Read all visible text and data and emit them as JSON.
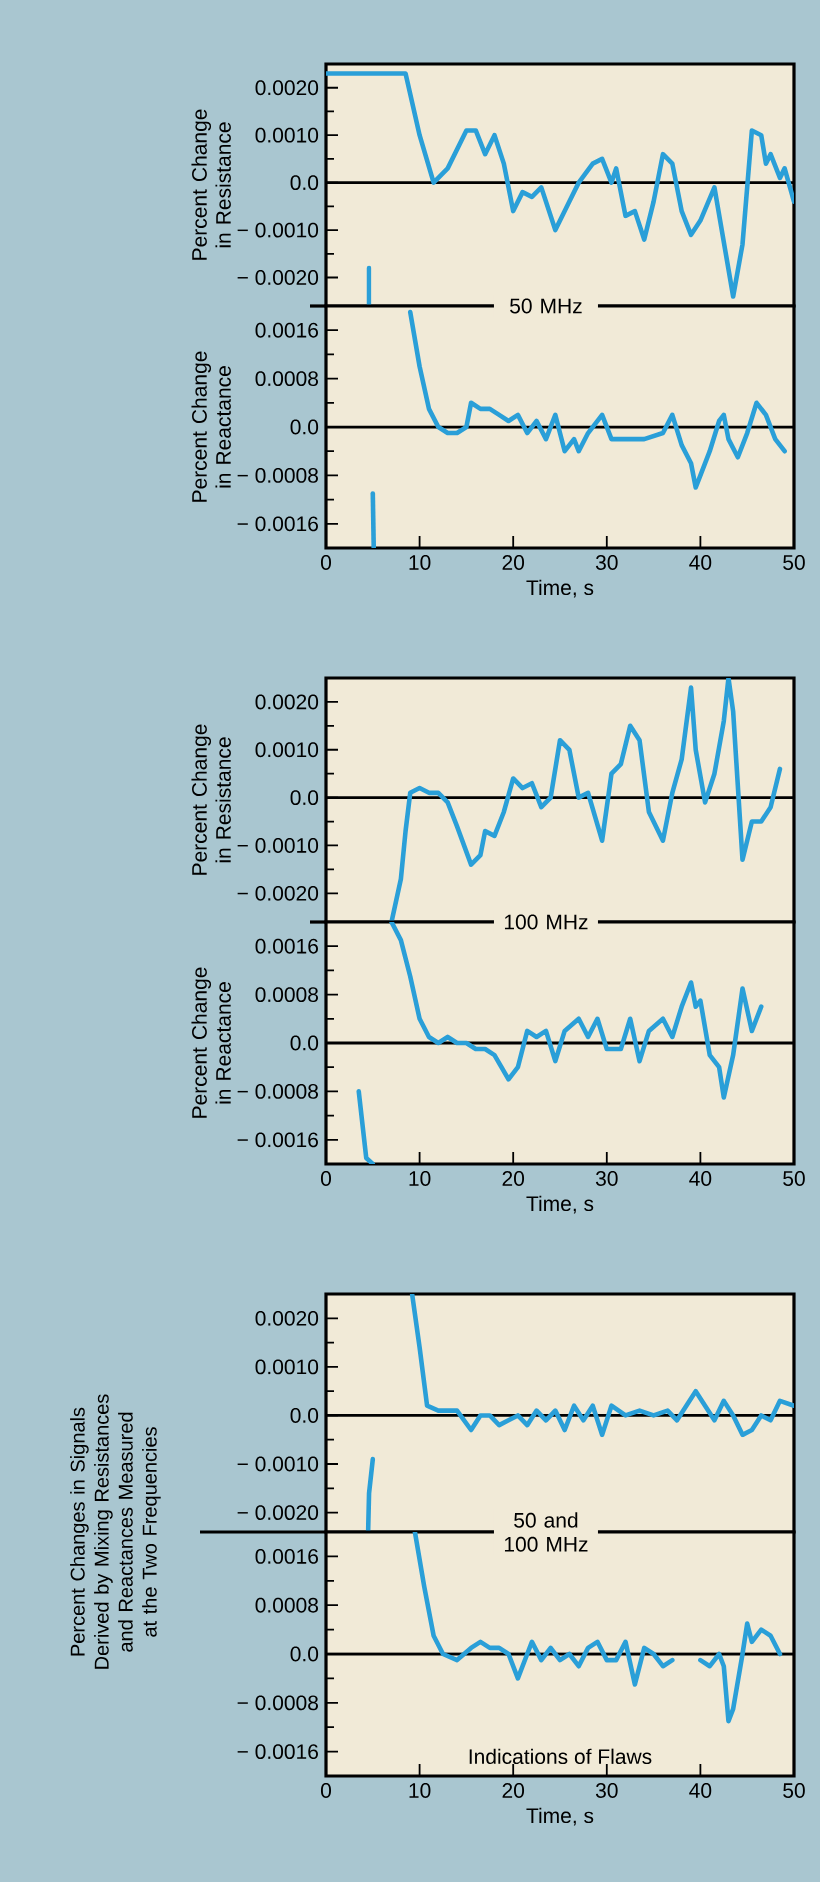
{
  "chart_data": [
    {
      "type": "line",
      "ylabel": "Percent Change in Resistance",
      "xlim": [
        0,
        50
      ],
      "xticks": [
        0,
        10,
        20,
        30,
        40,
        50
      ],
      "ylim": [
        -0.0026,
        0.0025
      ],
      "yticks": [
        {
          "value": 0.002,
          "label": "0.0020"
        },
        {
          "value": 0.001,
          "label": "0.0010"
        },
        {
          "value": 0,
          "label": "0.0"
        },
        {
          "value": -0.001,
          "label": "− 0.0010"
        },
        {
          "value": -0.002,
          "label": "− 0.0020"
        }
      ],
      "tick_labels": "y",
      "ref_lines": [
        {
          "axis": "y",
          "value": 0
        }
      ],
      "annotations": [
        "50 MHz"
      ],
      "series": [
        {
          "color": "#2a9fd8",
          "x": [
            0,
            8.5,
            10,
            11.5,
            13,
            15,
            16,
            17,
            18,
            19,
            20,
            21,
            22,
            23,
            24.5,
            26,
            27,
            28.5,
            29.5,
            30.5,
            31,
            32,
            33,
            34,
            35,
            36,
            37,
            38,
            39,
            40,
            41.5,
            43.5,
            44.5,
            45.5,
            46.5,
            47,
            47.5,
            48.5,
            49,
            50
          ],
          "values": [
            0.0023,
            0.0023,
            0.001,
            0.0,
            0.0003,
            0.0011,
            0.0011,
            0.0006,
            0.001,
            0.0004,
            -0.0006,
            -0.0002,
            -0.0003,
            -0.0001,
            -0.001,
            -0.0004,
            0.0,
            0.0004,
            0.0005,
            0.0,
            0.0003,
            -0.0007,
            -0.0006,
            -0.0012,
            -0.0004,
            0.0006,
            0.0004,
            -0.0006,
            -0.0011,
            -0.0008,
            -0.0001,
            -0.0024,
            -0.0013,
            0.0011,
            0.001,
            0.0004,
            0.0006,
            0.0001,
            0.0003,
            -0.0004
          ]
        },
        {
          "color": "#2a9fd8",
          "x": [
            4.6,
            4.6
          ],
          "values": [
            -0.0018,
            -0.0026
          ]
        }
      ]
    },
    {
      "type": "line",
      "ylabel": "Percent Change in Reactance",
      "xlabel": "Time, s",
      "xlim": [
        0,
        50
      ],
      "xticks": [
        0,
        10,
        20,
        30,
        40,
        50
      ],
      "ylim": [
        -0.002,
        0.002
      ],
      "yticks": [
        {
          "value": 0.0016,
          "label": "0.0016"
        },
        {
          "value": 0.0008,
          "label": "0.0008"
        },
        {
          "value": 0,
          "label": "0.0"
        },
        {
          "value": -0.0008,
          "label": "− 0.0008"
        },
        {
          "value": -0.0016,
          "label": "− 0.0016"
        }
      ],
      "ref_lines": [
        {
          "axis": "y",
          "value": 0
        }
      ],
      "series": [
        {
          "color": "#2a9fd8",
          "x": [
            9,
            10,
            11,
            12,
            13,
            14,
            15,
            15.5,
            16.5,
            17.5,
            18.5,
            19.5,
            20.5,
            21.5,
            22.5,
            23.5,
            24.5,
            25.5,
            26.5,
            27,
            28,
            29.5,
            30.5,
            32,
            34,
            36,
            37,
            38,
            39,
            39.5,
            40,
            41,
            42,
            42.5,
            43,
            44,
            45,
            46,
            47,
            48,
            49
          ],
          "values": [
            0.0019,
            0.001,
            0.0003,
            0.0,
            -0.0001,
            -0.0001,
            0.0,
            0.0004,
            0.0003,
            0.0003,
            0.0002,
            0.0001,
            0.0002,
            -0.0001,
            0.0001,
            -0.0002,
            0.0002,
            -0.0004,
            -0.0002,
            -0.0004,
            -0.0001,
            0.0002,
            -0.0002,
            -0.0002,
            -0.0002,
            -0.0001,
            0.0002,
            -0.0003,
            -0.0006,
            -0.001,
            -0.0008,
            -0.0004,
            0.0001,
            0.0002,
            -0.0002,
            -0.0005,
            -0.0001,
            0.0004,
            0.0002,
            -0.0002,
            -0.0004
          ]
        },
        {
          "color": "#2a9fd8",
          "x": [
            5,
            5.1
          ],
          "values": [
            -0.0011,
            -0.002
          ]
        }
      ]
    },
    {
      "type": "line",
      "ylabel": "Percent Change in Resistance",
      "xlim": [
        0,
        50
      ],
      "xticks": [
        0,
        10,
        20,
        30,
        40,
        50
      ],
      "ylim": [
        -0.0026,
        0.0025
      ],
      "yticks": [
        {
          "value": 0.002,
          "label": "0.0020"
        },
        {
          "value": 0.001,
          "label": "0.0010"
        },
        {
          "value": 0,
          "label": "0.0"
        },
        {
          "value": -0.001,
          "label": "− 0.0010"
        },
        {
          "value": -0.002,
          "label": "− 0.0020"
        }
      ],
      "tick_labels": "y",
      "ref_lines": [
        {
          "axis": "y",
          "value": 0
        }
      ],
      "annotations": [
        "100 MHz"
      ],
      "series": [
        {
          "color": "#2a9fd8",
          "x": [
            7,
            8,
            8.5,
            9,
            10,
            11,
            12,
            13,
            14,
            15.5,
            16.5,
            17,
            18,
            19,
            20,
            21,
            22,
            23,
            24,
            25,
            26,
            27,
            28,
            29.5,
            30.5,
            31.5,
            32.5,
            33.5,
            34.5,
            36,
            37,
            38,
            39,
            39.5,
            40.5,
            41.5,
            42.5,
            43,
            43.5,
            44.5,
            45.5,
            46.5,
            47.5,
            48.5
          ],
          "values": [
            -0.0026,
            -0.0017,
            -0.0007,
            0.0001,
            0.0002,
            0.0001,
            0.0001,
            -0.0001,
            -0.0006,
            -0.0014,
            -0.0012,
            -0.0007,
            -0.0008,
            -0.0003,
            0.0004,
            0.0002,
            0.0003,
            -0.0002,
            0.0,
            0.0012,
            0.001,
            0.0,
            0.0001,
            -0.0009,
            0.0005,
            0.0007,
            0.0015,
            0.0012,
            -0.0003,
            -0.0009,
            0.0001,
            0.0008,
            0.0023,
            0.001,
            -0.0001,
            0.0005,
            0.0016,
            0.0025,
            0.0018,
            -0.0013,
            -0.0005,
            -0.0005,
            -0.0002,
            0.0006
          ]
        }
      ]
    },
    {
      "type": "line",
      "ylabel": "Percent Change in Reactance",
      "xlabel": "Time, s",
      "xlim": [
        0,
        50
      ],
      "xticks": [
        0,
        10,
        20,
        30,
        40,
        50
      ],
      "ylim": [
        -0.002,
        0.002
      ],
      "yticks": [
        {
          "value": 0.0016,
          "label": "0.0016"
        },
        {
          "value": 0.0008,
          "label": "0.0008"
        },
        {
          "value": 0,
          "label": "0.0"
        },
        {
          "value": -0.0008,
          "label": "− 0.0008"
        },
        {
          "value": -0.0016,
          "label": "− 0.0016"
        }
      ],
      "ref_lines": [
        {
          "axis": "y",
          "value": 0
        }
      ],
      "series": [
        {
          "color": "#2a9fd8",
          "x": [
            7,
            8,
            9,
            10,
            11,
            12,
            13,
            14,
            15,
            16,
            17,
            18,
            19.5,
            20.5,
            21.5,
            22.5,
            23.5,
            24.5,
            25.5,
            27,
            28,
            29,
            30,
            31.5,
            32.5,
            33.5,
            34.5,
            36,
            37,
            38,
            39,
            39.5,
            40,
            41,
            42,
            42.5,
            43.5,
            44.5,
            45.5,
            46.5
          ],
          "values": [
            0.002,
            0.0017,
            0.0011,
            0.0004,
            0.0001,
            0.0,
            0.0001,
            0.0,
            0.0,
            -0.0001,
            -0.0001,
            -0.0002,
            -0.0006,
            -0.0004,
            0.0002,
            0.0001,
            0.0002,
            -0.0003,
            0.0002,
            0.0004,
            0.0001,
            0.0004,
            -0.0001,
            -0.0001,
            0.0004,
            -0.0003,
            0.0002,
            0.0004,
            0.0001,
            0.0006,
            0.001,
            0.0006,
            0.0007,
            -0.0002,
            -0.0004,
            -0.0009,
            -0.0002,
            0.0009,
            0.0002,
            0.0006
          ]
        },
        {
          "color": "#2a9fd8",
          "x": [
            3.5,
            4.3,
            5
          ],
          "values": [
            -0.0008,
            -0.0019,
            -0.002
          ]
        }
      ]
    },
    {
      "type": "line",
      "ylabel": "Percent Changes in Signals Derived by Mixing Resistances and Reactances Measured at the Two Frequencies",
      "xlim": [
        0,
        50
      ],
      "xticks": [
        0,
        10,
        20,
        30,
        40,
        50
      ],
      "ylim": [
        -0.0024,
        0.0025
      ],
      "yticks": [
        {
          "value": 0.002,
          "label": "0.0020"
        },
        {
          "value": 0.001,
          "label": "0.0010"
        },
        {
          "value": 0,
          "label": "0.0"
        },
        {
          "value": -0.001,
          "label": "− 0.0010"
        },
        {
          "value": -0.002,
          "label": "− 0.0020"
        }
      ],
      "tick_labels": "y",
      "ref_lines": [
        {
          "axis": "y",
          "value": 0
        }
      ],
      "annotations": [
        "50 and 100 MHz"
      ],
      "series": [
        {
          "color": "#2a9fd8",
          "x": [
            9.2,
            10,
            10.8,
            12,
            14,
            15.5,
            16.5,
            17.5,
            18.5,
            19.5,
            20.5,
            21.5,
            22.5,
            23.5,
            24.5,
            25.5,
            26.5,
            27.5,
            28.5,
            29.5,
            30.5,
            32,
            33.5,
            35,
            36.5,
            37.5,
            38.5,
            39.5,
            40.5,
            41.5,
            42.5,
            43.5,
            44.5,
            45.5,
            46.5,
            47.5,
            48.5,
            50
          ],
          "values": [
            0.0025,
            0.0014,
            0.0002,
            0.0001,
            0.0001,
            -0.0003,
            0.0,
            0.0,
            -0.0002,
            -0.0001,
            0.0,
            -0.0002,
            0.0001,
            -0.0001,
            0.0001,
            -0.0003,
            0.0002,
            -0.0001,
            0.0002,
            -0.0004,
            0.0002,
            0.0,
            0.0001,
            0.0,
            0.0001,
            -0.0001,
            0.0002,
            0.0005,
            0.0002,
            -0.0001,
            0.0003,
            0.0,
            -0.0004,
            -0.0003,
            0.0,
            -0.0001,
            0.0003,
            0.0002
          ]
        },
        {
          "color": "#2a9fd8",
          "x": [
            4.5,
            4.6,
            5
          ],
          "values": [
            -0.0024,
            -0.0016,
            -0.0009
          ]
        }
      ]
    },
    {
      "type": "line",
      "xlabel": "Time, s",
      "xlim": [
        0,
        50
      ],
      "xticks": [
        0,
        10,
        20,
        30,
        40,
        50
      ],
      "ylim": [
        -0.002,
        0.002
      ],
      "yticks": [
        {
          "value": 0.0016,
          "label": "0.0016"
        },
        {
          "value": 0.0008,
          "label": "0.0008"
        },
        {
          "value": 0,
          "label": "0.0"
        },
        {
          "value": -0.0008,
          "label": "− 0.0008"
        },
        {
          "value": -0.0016,
          "label": "− 0.0016"
        }
      ],
      "ref_lines": [
        {
          "axis": "y",
          "value": 0
        }
      ],
      "annotations": [
        "Indications of Flaws"
      ],
      "series": [
        {
          "color": "#2a9fd8",
          "x": [
            9.5,
            10.5,
            11.5,
            12.5,
            14,
            15.5,
            16.5,
            17.5,
            18.5,
            19.5,
            20.5,
            21.5,
            22,
            23,
            24,
            25,
            26,
            27,
            28,
            29,
            30,
            31,
            32,
            33,
            34,
            35,
            36,
            37,
            38,
            40,
            41,
            42,
            42.5,
            43,
            43.5,
            44.5,
            45,
            45.5,
            46.5,
            47.5,
            48.5
          ],
          "values": [
            0.002,
            0.0011,
            0.0003,
            0.0,
            -0.0001,
            0.0001,
            0.0002,
            0.0001,
            0.0001,
            0.0,
            -0.0004,
            0.0,
            0.0002,
            -0.0001,
            0.0001,
            -0.0001,
            0.0,
            -0.0002,
            0.0001,
            0.0002,
            -0.0001,
            -0.0001,
            0.0002,
            -0.0005,
            0.0001,
            0.0,
            -0.0002,
            -0.0001,
            null,
            -0.0001,
            -0.0002,
            0.0,
            -0.0002,
            -0.0011,
            -0.0009,
            0.0,
            0.0005,
            0.0002,
            0.0004,
            0.0003,
            0.0
          ]
        }
      ]
    }
  ]
}
